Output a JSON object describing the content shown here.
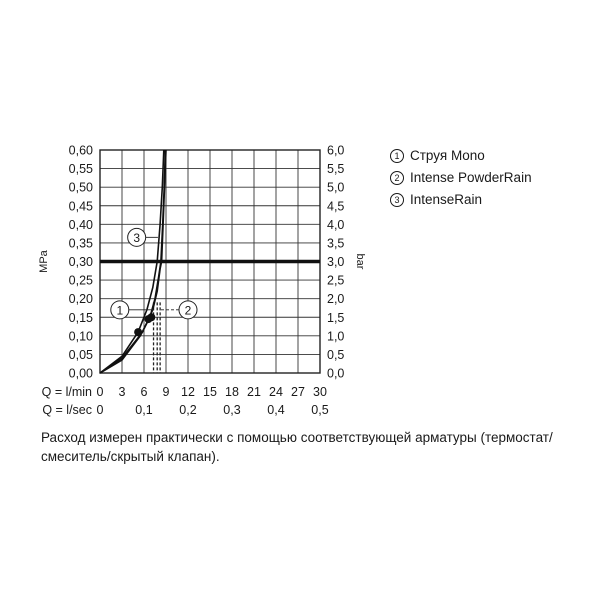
{
  "chart_data": {
    "type": "line",
    "title": "",
    "y_left": {
      "label": "MPa",
      "range": [
        0,
        0.6
      ],
      "ticks": [
        "0,00",
        "0,05",
        "0,10",
        "0,15",
        "0,20",
        "0,25",
        "0,30",
        "0,35",
        "0,40",
        "0,45",
        "0,50",
        "0,55",
        "0,60"
      ]
    },
    "y_right": {
      "label": "bar",
      "range": [
        0,
        6
      ],
      "ticks": [
        "0,0",
        "0,5",
        "1,0",
        "1,5",
        "2,0",
        "2,5",
        "3,0",
        "3,5",
        "4,0",
        "4,5",
        "5,0",
        "5,5",
        "6,0"
      ]
    },
    "x_lmin": {
      "label": "Q = l/min",
      "range": [
        0,
        30
      ],
      "ticks": [
        "0",
        "3",
        "6",
        "9",
        "12",
        "15",
        "18",
        "21",
        "24",
        "27",
        "30"
      ]
    },
    "x_lsec": {
      "label": "Q = l/sec",
      "ticks": [
        "0",
        "0,1",
        "0,2",
        "0,3",
        "0,4",
        "0,5"
      ]
    },
    "reference_line_mpa": 0.3,
    "grid": true,
    "series": [
      {
        "id": "1",
        "name": "Струя Mono",
        "points": [
          [
            0,
            0
          ],
          [
            3,
            0.045
          ],
          [
            5.2,
            0.11
          ],
          [
            6.4,
            0.17
          ],
          [
            7.2,
            0.23
          ],
          [
            7.8,
            0.3
          ],
          [
            8.2,
            0.4
          ],
          [
            8.5,
            0.5
          ],
          [
            8.7,
            0.6
          ]
        ],
        "marker": [
          5.2,
          0.11
        ]
      },
      {
        "id": "2",
        "name": "Intense PowderRain",
        "points": [
          [
            0,
            0
          ],
          [
            3,
            0.035
          ],
          [
            5.5,
            0.1
          ],
          [
            6.8,
            0.15
          ],
          [
            7.5,
            0.2
          ],
          [
            8.0,
            0.26
          ],
          [
            8.3,
            0.3
          ],
          [
            8.55,
            0.4
          ],
          [
            8.75,
            0.5
          ],
          [
            8.9,
            0.6
          ]
        ],
        "marker": [
          6.6,
          0.145
        ]
      },
      {
        "id": "3",
        "name": "IntenseRain",
        "points": [
          [
            0,
            0
          ],
          [
            3,
            0.04
          ],
          [
            5.8,
            0.11
          ],
          [
            7.2,
            0.17
          ],
          [
            7.8,
            0.22
          ],
          [
            8.2,
            0.28
          ],
          [
            8.4,
            0.3
          ],
          [
            8.6,
            0.4
          ],
          [
            8.8,
            0.5
          ],
          [
            9.0,
            0.6
          ]
        ],
        "marker": [
          7.0,
          0.15
        ]
      }
    ],
    "vertical_drops": [
      7.3,
      7.8,
      8.2
    ],
    "callouts": [
      {
        "id": "1",
        "at": [
          2.7,
          0.17
        ]
      },
      {
        "id": "2",
        "at": [
          12.0,
          0.17
        ]
      },
      {
        "id": "3",
        "at": [
          5.0,
          0.365
        ]
      }
    ]
  },
  "legend": [
    {
      "num": "1",
      "text": "Струя Mono"
    },
    {
      "num": "2",
      "text": "Intense PowderRain"
    },
    {
      "num": "3",
      "text": "IntenseRain"
    }
  ],
  "note": "Расход измерен практически с помощью соответствующей арматуры (термостат/смеситель/скрытый клапан)."
}
